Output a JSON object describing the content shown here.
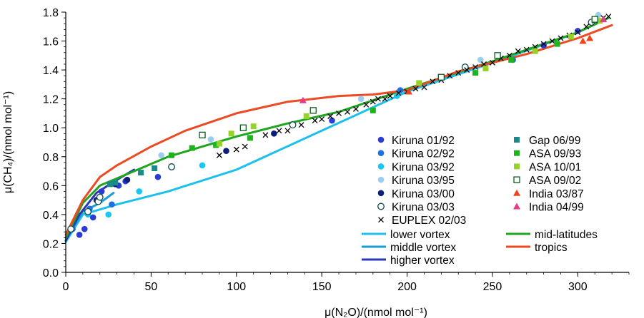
{
  "chart_data": {
    "type": "scatter",
    "xlabel": "μ(N₂O)/(nmol mol⁻¹)",
    "ylabel": "μ(CH₄)/(nmol mol⁻¹)",
    "xlim": [
      0,
      330
    ],
    "ylim": [
      0,
      1.8
    ],
    "x_ticks": [
      0,
      50,
      100,
      150,
      200,
      250,
      300
    ],
    "y_ticks": [
      0.0,
      0.2,
      0.4,
      0.6,
      0.8,
      1.0,
      1.2,
      1.4,
      1.6,
      1.8
    ],
    "grid": false,
    "legend_position": "lower-right",
    "series": [
      {
        "name": "Kiruna 01/92",
        "marker": "circle",
        "color": "#2a3bd6",
        "fill": true,
        "points": [
          [
            8,
            0.26
          ],
          [
            11,
            0.3
          ],
          [
            16,
            0.38
          ],
          [
            21,
            0.56
          ],
          [
            31,
            0.6
          ],
          [
            35,
            0.63
          ],
          [
            54,
            0.66
          ],
          [
            156,
            1.05
          ],
          [
            280,
            1.57
          ],
          [
            300,
            1.67
          ]
        ]
      },
      {
        "name": "Kiruna 02/92",
        "marker": "circle",
        "color": "#1f70e0",
        "fill": true,
        "points": [
          [
            4,
            0.3
          ],
          [
            14,
            0.44
          ],
          [
            27,
            0.47
          ],
          [
            196,
            1.26
          ],
          [
            262,
            1.47
          ]
        ]
      },
      {
        "name": "Kiruna 03/92",
        "marker": "circle",
        "color": "#19c8ef",
        "fill": true,
        "points": [
          [
            13,
            0.4
          ],
          [
            25,
            0.4
          ],
          [
            43,
            0.56
          ],
          [
            80,
            0.74
          ],
          [
            194,
            1.22
          ]
        ]
      },
      {
        "name": "Kiruna 03/95",
        "marker": "circle",
        "color": "#9ccdf1",
        "fill": true,
        "points": [
          [
            56,
            0.81
          ],
          [
            85,
            0.92
          ],
          [
            173,
            1.2
          ],
          [
            243,
            1.47
          ],
          [
            312,
            1.78
          ]
        ]
      },
      {
        "name": "Kiruna 03/00",
        "marker": "circle",
        "color": "#0d1e7a",
        "fill": true,
        "points": [
          [
            18,
            0.5
          ],
          [
            29,
            0.61
          ],
          [
            36,
            0.64
          ],
          [
            94,
            0.84
          ],
          [
            122,
            0.96
          ]
        ]
      },
      {
        "name": "Kiruna 03/03",
        "marker": "circle",
        "color": "#0d4a4a",
        "fill": false,
        "points": [
          [
            3,
            0.3
          ],
          [
            13,
            0.42
          ],
          [
            19,
            0.49
          ],
          [
            20,
            0.52
          ],
          [
            62,
            0.73
          ],
          [
            133,
            1.02
          ],
          [
            234,
            1.42
          ],
          [
            308,
            1.73
          ]
        ]
      },
      {
        "name": "EUPLEX 02/03",
        "marker": "x",
        "color": "#000000",
        "fill": false,
        "points": [
          [
            90,
            0.81
          ],
          [
            100,
            0.85
          ],
          [
            105,
            0.87
          ],
          [
            117,
            0.95
          ],
          [
            125,
            0.98
          ],
          [
            130,
            0.98
          ],
          [
            138,
            1.02
          ],
          [
            146,
            1.05
          ],
          [
            150,
            1.06
          ],
          [
            155,
            1.08
          ],
          [
            160,
            1.1
          ],
          [
            165,
            1.11
          ],
          [
            170,
            1.13
          ],
          [
            176,
            1.16
          ],
          [
            180,
            1.18
          ],
          [
            183,
            1.2
          ],
          [
            187,
            1.2
          ],
          [
            190,
            1.22
          ],
          [
            195,
            1.24
          ],
          [
            200,
            1.25
          ],
          [
            205,
            1.27
          ],
          [
            210,
            1.28
          ],
          [
            215,
            1.32
          ],
          [
            220,
            1.33
          ],
          [
            225,
            1.36
          ],
          [
            230,
            1.38
          ],
          [
            235,
            1.4
          ],
          [
            240,
            1.42
          ],
          [
            245,
            1.44
          ],
          [
            250,
            1.45
          ],
          [
            255,
            1.48
          ],
          [
            260,
            1.5
          ],
          [
            265,
            1.53
          ],
          [
            270,
            1.54
          ],
          [
            275,
            1.56
          ],
          [
            280,
            1.58
          ],
          [
            285,
            1.6
          ],
          [
            290,
            1.62
          ],
          [
            295,
            1.64
          ],
          [
            300,
            1.66
          ],
          [
            305,
            1.7
          ],
          [
            310,
            1.74
          ],
          [
            315,
            1.76
          ],
          [
            318,
            1.77
          ]
        ]
      },
      {
        "name": "Gap 06/99",
        "marker": "square",
        "color": "#1b8a8a",
        "fill": true,
        "points": [
          [
            26,
            0.61
          ],
          [
            29,
            0.62
          ],
          [
            44,
            0.69
          ],
          [
            52,
            0.72
          ]
        ]
      },
      {
        "name": "ASA 09/93",
        "marker": "square",
        "color": "#1db31d",
        "fill": true,
        "points": [
          [
            62,
            0.81
          ],
          [
            74,
            0.86
          ],
          [
            88,
            0.88
          ],
          [
            108,
            0.93
          ],
          [
            180,
            1.12
          ],
          [
            240,
            1.38
          ],
          [
            261,
            1.47
          ],
          [
            288,
            1.58
          ]
        ]
      },
      {
        "name": "ASA 10/01",
        "marker": "square",
        "color": "#96d329",
        "fill": true,
        "points": [
          [
            90,
            0.89
          ],
          [
            97,
            0.96
          ],
          [
            110,
            1.01
          ],
          [
            141,
            1.08
          ],
          [
            207,
            1.31
          ],
          [
            246,
            1.41
          ],
          [
            275,
            1.53
          ],
          [
            296,
            1.63
          ],
          [
            313,
            1.74
          ]
        ]
      },
      {
        "name": "ASA 09/02",
        "marker": "square",
        "color": "#0f5a1e",
        "fill": false,
        "points": [
          [
            80,
            0.95
          ],
          [
            104,
            1.0
          ],
          [
            145,
            1.12
          ],
          [
            220,
            1.35
          ],
          [
            253,
            1.5
          ],
          [
            310,
            1.75
          ]
        ]
      },
      {
        "name": "India 03/87",
        "marker": "triangle",
        "color": "#f3431c",
        "fill": true,
        "points": [
          [
            201,
            1.25
          ],
          [
            303,
            1.6
          ],
          [
            307,
            1.62
          ]
        ]
      },
      {
        "name": "India 04/99",
        "marker": "triangle",
        "color": "#e83b86",
        "fill": true,
        "points": [
          [
            139,
            1.19
          ],
          [
            315,
            1.75
          ]
        ]
      }
    ],
    "curves": [
      {
        "name": "lower vortex",
        "color": "#1cc0ec",
        "width": 3,
        "points": [
          [
            0,
            0.21
          ],
          [
            10,
            0.4
          ],
          [
            30,
            0.47
          ],
          [
            60,
            0.56
          ],
          [
            100,
            0.71
          ],
          [
            150,
            0.98
          ],
          [
            200,
            1.25
          ],
          [
            250,
            1.45
          ],
          [
            300,
            1.66
          ],
          [
            318,
            1.76
          ]
        ]
      },
      {
        "name": "middle vortex",
        "color": "#1e9bd2",
        "width": 3,
        "points": [
          [
            0,
            0.22
          ],
          [
            10,
            0.42
          ],
          [
            20,
            0.48
          ],
          [
            28,
            0.55
          ]
        ]
      },
      {
        "name": "higher vortex",
        "color": "#2a38b8",
        "width": 3,
        "points": [
          [
            0,
            0.22
          ],
          [
            8,
            0.4
          ],
          [
            18,
            0.55
          ],
          [
            30,
            0.64
          ],
          [
            40,
            0.71
          ]
        ]
      },
      {
        "name": "mid-latitudes",
        "color": "#1fa51f",
        "width": 3,
        "points": [
          [
            0,
            0.24
          ],
          [
            10,
            0.48
          ],
          [
            20,
            0.6
          ],
          [
            40,
            0.7
          ],
          [
            60,
            0.8
          ],
          [
            80,
            0.87
          ],
          [
            100,
            0.94
          ],
          [
            130,
            1.03
          ],
          [
            160,
            1.11
          ],
          [
            200,
            1.27
          ],
          [
            250,
            1.46
          ],
          [
            300,
            1.66
          ],
          [
            318,
            1.76
          ]
        ]
      },
      {
        "name": "tropics",
        "color": "#ec4a22",
        "width": 3,
        "points": [
          [
            0,
            0.26
          ],
          [
            10,
            0.5
          ],
          [
            20,
            0.66
          ],
          [
            30,
            0.74
          ],
          [
            50,
            0.87
          ],
          [
            70,
            0.98
          ],
          [
            100,
            1.1
          ],
          [
            130,
            1.18
          ],
          [
            160,
            1.22
          ],
          [
            180,
            1.23
          ],
          [
            200,
            1.26
          ],
          [
            230,
            1.39
          ],
          [
            270,
            1.51
          ],
          [
            300,
            1.62
          ],
          [
            320,
            1.71
          ]
        ]
      }
    ]
  }
}
